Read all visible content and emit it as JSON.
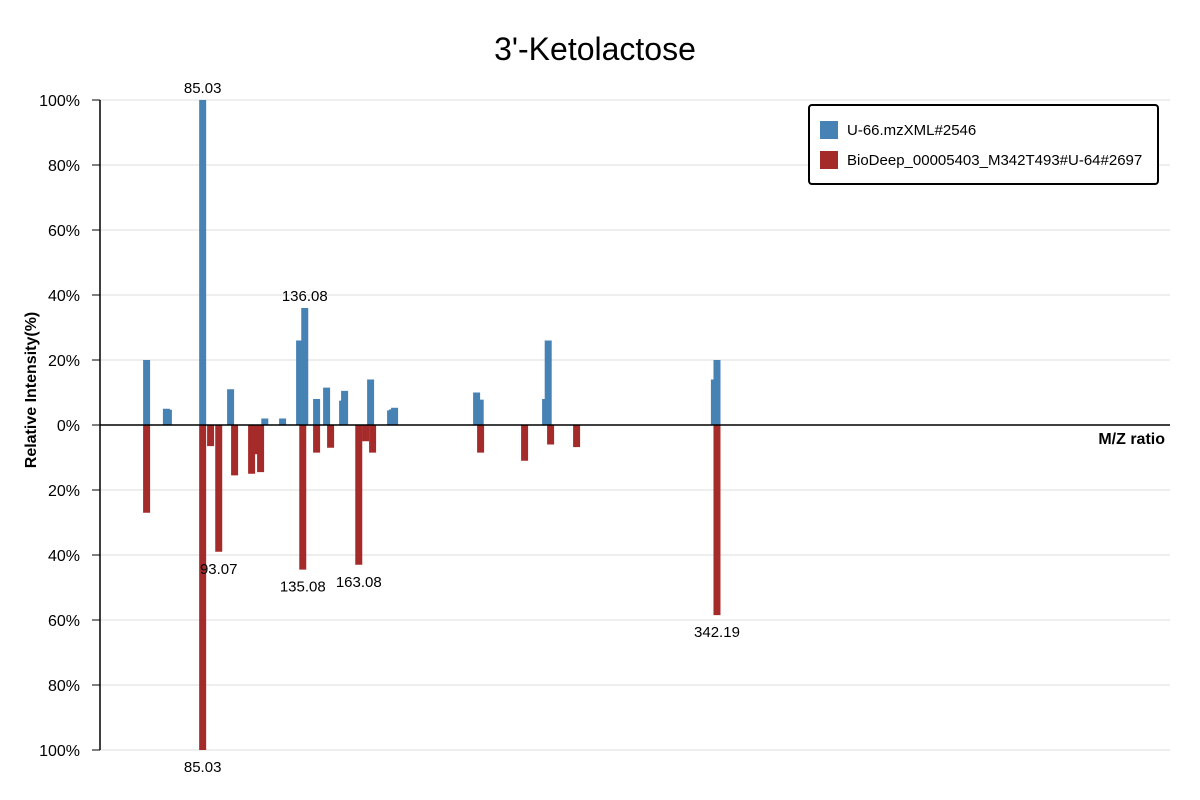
{
  "chart_data": {
    "type": "bar",
    "title": "3'-Ketolactose",
    "xlabel": "M/Z ratio",
    "ylabel": "Relative Intensity(%)",
    "ylim": [
      -100,
      100
    ],
    "y_ticks": [
      {
        "value": 100,
        "label": "100%"
      },
      {
        "value": 80,
        "label": "80%"
      },
      {
        "value": 60,
        "label": "60%"
      },
      {
        "value": 40,
        "label": "40%"
      },
      {
        "value": 20,
        "label": "20%"
      },
      {
        "value": 0,
        "label": "0%"
      },
      {
        "value": -20,
        "label": "20%"
      },
      {
        "value": -40,
        "label": "40%"
      },
      {
        "value": -60,
        "label": "60%"
      },
      {
        "value": -80,
        "label": "80%"
      },
      {
        "value": -100,
        "label": "100%"
      }
    ],
    "grid": true,
    "legend_position": "top-right",
    "series": [
      {
        "name": "U-66.mzXML#2546",
        "color": "#4682b4",
        "direction": "up",
        "peaks": [
          {
            "mz": 57.0,
            "intensity": 20
          },
          {
            "mz": 66.9,
            "intensity": 5
          },
          {
            "mz": 67.9,
            "intensity": 4.7
          },
          {
            "mz": 85.03,
            "intensity": 100
          },
          {
            "mz": 99.0,
            "intensity": 11
          },
          {
            "mz": 116.1,
            "intensity": 2
          },
          {
            "mz": 125.0,
            "intensity": 2
          },
          {
            "mz": 133.5,
            "intensity": 26
          },
          {
            "mz": 136.08,
            "intensity": 36
          },
          {
            "mz": 142.0,
            "intensity": 8
          },
          {
            "mz": 147.0,
            "intensity": 11.5
          },
          {
            "mz": 155.0,
            "intensity": 7.5
          },
          {
            "mz": 156.0,
            "intensity": 10.5
          },
          {
            "mz": 169.0,
            "intensity": 14
          },
          {
            "mz": 179.0,
            "intensity": 4.5
          },
          {
            "mz": 180.0,
            "intensity": 4.8
          },
          {
            "mz": 181.0,
            "intensity": 5.3
          },
          {
            "mz": 222.0,
            "intensity": 10
          },
          {
            "mz": 223.8,
            "intensity": 7.8
          },
          {
            "mz": 256.5,
            "intensity": 8
          },
          {
            "mz": 257.8,
            "intensity": 26
          },
          {
            "mz": 340.9,
            "intensity": 14
          },
          {
            "mz": 342.19,
            "intensity": 20
          }
        ]
      },
      {
        "name": "BioDeep_00005403_M342T493#U-64#2697",
        "color": "#a52a2a",
        "direction": "down",
        "peaks": [
          {
            "mz": 57.0,
            "intensity": 27
          },
          {
            "mz": 85.03,
            "intensity": 100
          },
          {
            "mz": 89.0,
            "intensity": 6.5
          },
          {
            "mz": 93.07,
            "intensity": 39
          },
          {
            "mz": 101.0,
            "intensity": 15.5
          },
          {
            "mz": 109.5,
            "intensity": 15
          },
          {
            "mz": 112.4,
            "intensity": 9
          },
          {
            "mz": 114.0,
            "intensity": 14.5
          },
          {
            "mz": 135.08,
            "intensity": 44.5
          },
          {
            "mz": 142.0,
            "intensity": 8.5
          },
          {
            "mz": 149.0,
            "intensity": 7
          },
          {
            "mz": 163.08,
            "intensity": 43
          },
          {
            "mz": 166.5,
            "intensity": 5
          },
          {
            "mz": 170.0,
            "intensity": 8.5
          },
          {
            "mz": 224.0,
            "intensity": 8.5
          },
          {
            "mz": 246.0,
            "intensity": 11
          },
          {
            "mz": 259.0,
            "intensity": 6
          },
          {
            "mz": 272.0,
            "intensity": 6.8
          },
          {
            "mz": 342.19,
            "intensity": 58.5
          }
        ]
      }
    ],
    "peak_labels": [
      {
        "text": "85.03",
        "mz": 85.03,
        "intensity": 100,
        "series": 0
      },
      {
        "text": "136.08",
        "mz": 136.08,
        "intensity": 36,
        "series": 0
      },
      {
        "text": "85.03",
        "mz": 85.03,
        "intensity": -100,
        "series": 1
      },
      {
        "text": "93.07",
        "mz": 93.07,
        "intensity": -39,
        "series": 1
      },
      {
        "text": "135.08",
        "mz": 135.08,
        "intensity": -44.5,
        "series": 1
      },
      {
        "text": "163.08",
        "mz": 163.08,
        "intensity": -43,
        "series": 1
      },
      {
        "text": "342.19",
        "mz": 342.19,
        "intensity": -58.5,
        "series": 1
      }
    ]
  }
}
